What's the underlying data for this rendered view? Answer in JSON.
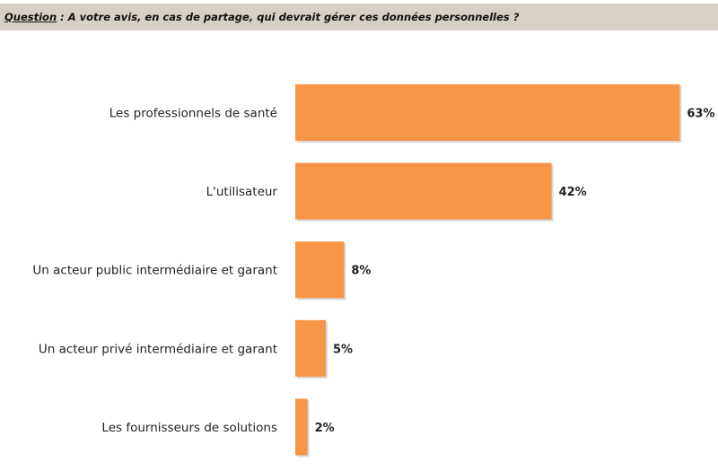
{
  "header": {
    "question_label": "Question",
    "question_text": " : A votre avis, en cas de partage, qui devrait gérer ces données personnelles ?"
  },
  "chart_data": {
    "type": "bar",
    "orientation": "horizontal",
    "title": "Question : A votre avis, en cas de partage, qui devrait gérer ces données personnelles ?",
    "categories": [
      "Les professionnels de santé",
      "L'utilisateur",
      "Un acteur public intermédiaire et garant",
      "Un acteur privé intermédiaire et garant",
      "Les fournisseurs de solutions"
    ],
    "values": [
      63,
      42,
      8,
      5,
      2
    ],
    "value_labels": [
      "63%",
      "42%",
      "8%",
      "5%",
      "2%"
    ],
    "unit": "%",
    "xlim": [
      0,
      69
    ],
    "grid": false,
    "bar_color": "#f79646",
    "shadow_color": "#d9d9d9"
  }
}
